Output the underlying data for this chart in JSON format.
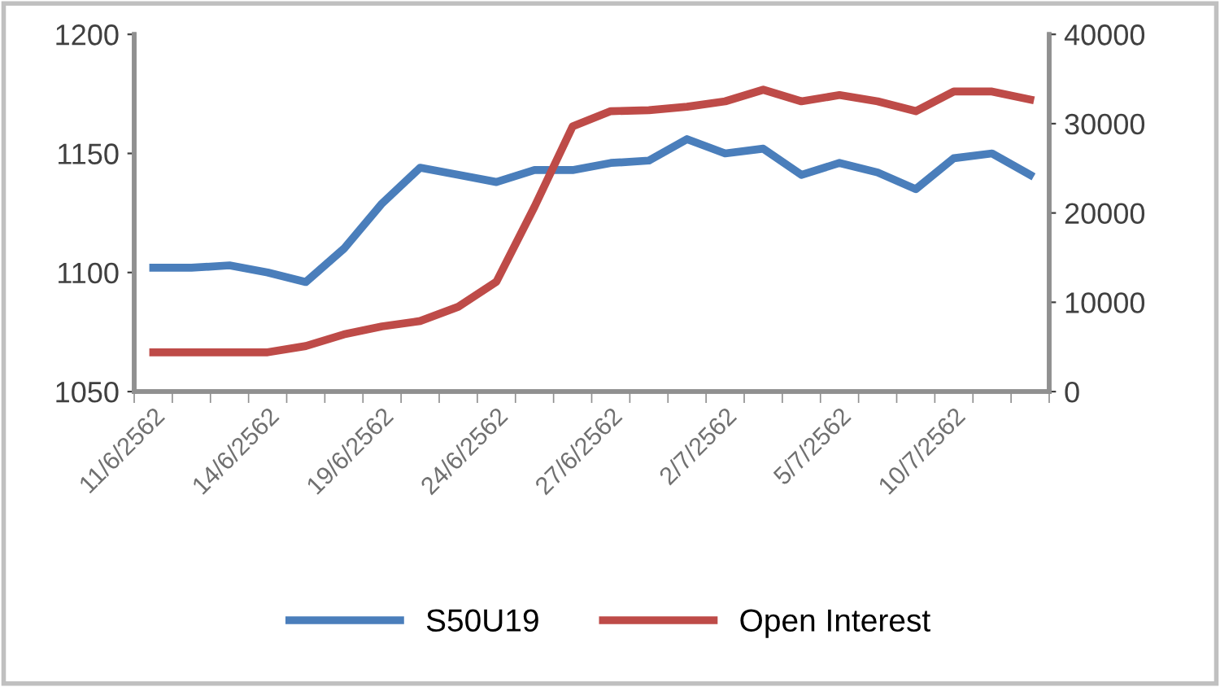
{
  "chart_data": {
    "type": "line",
    "categories": [
      "11/6/2562",
      null,
      null,
      "14/6/2562",
      null,
      null,
      "19/6/2562",
      null,
      null,
      "24/6/2562",
      null,
      null,
      "27/6/2562",
      null,
      null,
      "2/7/2562",
      null,
      null,
      "5/7/2562",
      null,
      null,
      "10/7/2562",
      null,
      null
    ],
    "series": [
      {
        "name": "S50U19",
        "color": "#4a7ebb",
        "values": [
          1102,
          1102,
          1103,
          1100,
          1096,
          1110,
          1129,
          1144,
          1141,
          1138,
          1143,
          1143,
          1146,
          1147,
          1156,
          1150,
          1152,
          1141,
          1146,
          1142,
          1135,
          1148,
          1150,
          1141
        ]
      },
      {
        "name": "Open Interest",
        "color": "#be4b48",
        "axis": "y2",
        "values": [
          4400,
          4400,
          4400,
          4400,
          5100,
          6400,
          7300,
          7900,
          9500,
          12300,
          20700,
          29700,
          31400,
          31500,
          31900,
          32500,
          33800,
          32500,
          33200,
          32500,
          31400,
          33600,
          33600,
          32700
        ]
      }
    ],
    "ylim": [
      1050,
      1200
    ],
    "yticks": [
      1050,
      1100,
      1150,
      1200
    ],
    "y2lim": [
      0,
      40000
    ],
    "y2ticks": [
      0,
      10000,
      20000,
      30000,
      40000
    ],
    "grid": false,
    "legend": "bottom",
    "marker": "none",
    "line_style": "solid"
  }
}
